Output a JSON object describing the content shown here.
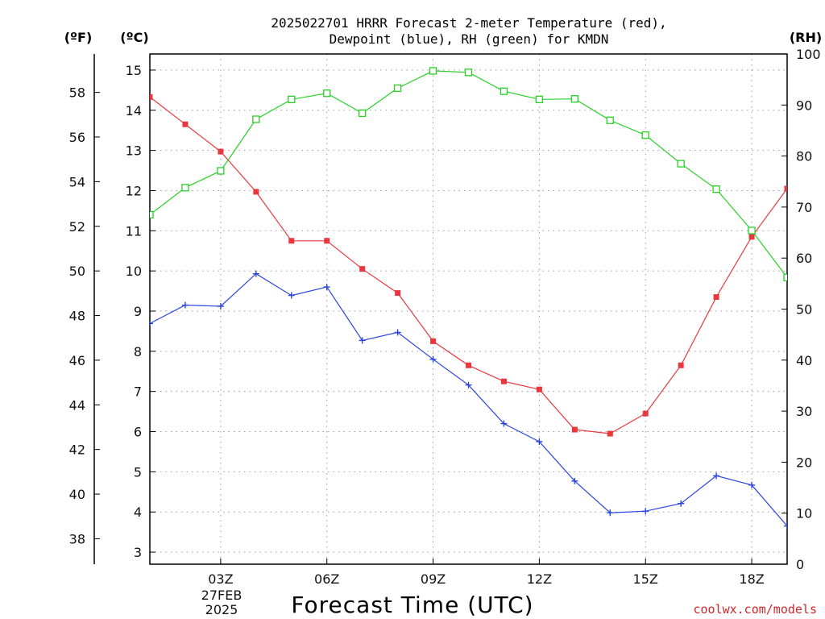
{
  "chart_data": {
    "type": "line",
    "title_line1": "2025022701 HRRR Forecast 2-meter Temperature (red),",
    "title_line2": "Dewpoint (blue), RH (green) for KMDN",
    "xlabel": "Forecast Time (UTC)",
    "date_label_line1": "27FEB",
    "date_label_line2": "2025",
    "credit": "coolwx.com/models",
    "left_outer_unit": "(ºF)",
    "left_inner_unit": "(ºC)",
    "right_unit": "(RH)",
    "x_range": [
      1,
      19
    ],
    "x_ticks": [
      {
        "hour": 3,
        "label": "03Z"
      },
      {
        "hour": 6,
        "label": "06Z"
      },
      {
        "hour": 9,
        "label": "09Z"
      },
      {
        "hour": 12,
        "label": "12Z"
      },
      {
        "hour": 15,
        "label": "15Z"
      },
      {
        "hour": 18,
        "label": "18Z"
      }
    ],
    "celsius_ticks": [
      "3",
      "4",
      "5",
      "6",
      "7",
      "8",
      "9",
      "10",
      "11",
      "12",
      "13",
      "14",
      "15"
    ],
    "fahrenheit_ticks": [
      "38",
      "40",
      "42",
      "44",
      "46",
      "48",
      "50",
      "52",
      "54",
      "56",
      "58"
    ],
    "rh_ticks": [
      "0",
      "10",
      "20",
      "30",
      "40",
      "50",
      "60",
      "70",
      "80",
      "90",
      "100"
    ],
    "ylim_celsius": [
      2.7,
      15.4
    ],
    "ylim_rh": [
      0,
      100
    ],
    "x_hours": [
      1,
      2,
      3,
      4,
      5,
      6,
      7,
      8,
      9,
      10,
      11,
      12,
      13,
      14,
      15,
      16,
      17,
      18,
      19
    ],
    "series": [
      {
        "name": "Temperature",
        "color": "#e8383d",
        "marker": "filled-square",
        "axis": "celsius",
        "values": [
          14.33,
          13.65,
          12.97,
          11.97,
          10.75,
          10.75,
          10.05,
          9.45,
          8.25,
          7.65,
          7.25,
          7.05,
          6.05,
          5.95,
          6.45,
          7.65,
          9.35,
          10.85,
          12.05
        ]
      },
      {
        "name": "Dewpoint",
        "color": "#2a44e0",
        "marker": "plus",
        "axis": "celsius",
        "values": [
          8.69,
          9.15,
          9.12,
          9.93,
          9.39,
          9.6,
          8.27,
          8.47,
          7.8,
          7.16,
          6.2,
          5.75,
          4.77,
          3.98,
          4.02,
          4.21,
          4.9,
          4.67,
          3.65
        ]
      },
      {
        "name": "RH",
        "color": "#28d028",
        "marker": "open-square",
        "axis": "rh",
        "values": [
          68.5,
          73.8,
          77.1,
          87.2,
          91.1,
          92.3,
          88.4,
          93.3,
          96.7,
          96.4,
          92.7,
          91.1,
          91.2,
          87.0,
          84.1,
          78.5,
          73.5,
          65.4,
          56.2
        ]
      }
    ],
    "grid": true
  }
}
